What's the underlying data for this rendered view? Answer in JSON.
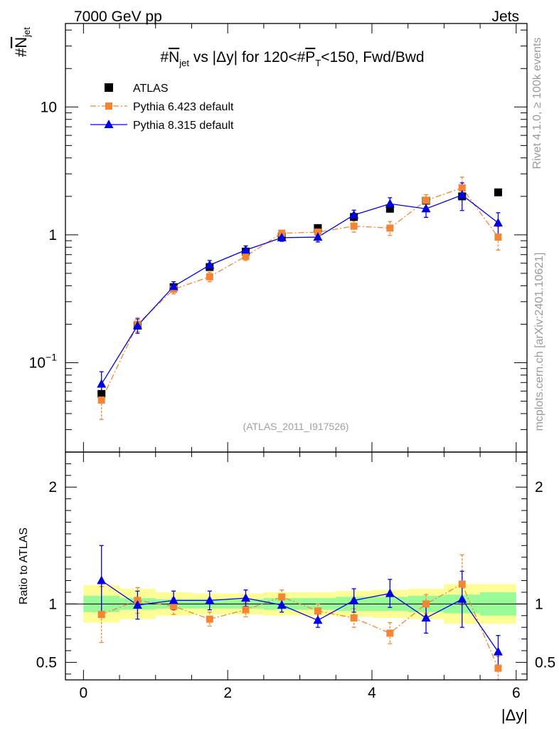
{
  "header": {
    "left": "7000 GeV pp",
    "right": "Jets"
  },
  "side_labels": {
    "rivet": "Rivet 4.1.0, ≥ 100k events",
    "mcplots": "mcplots.cern.ch [arXiv:2401.10621]"
  },
  "chart_data": {
    "type": "scatter",
    "title": "#N_jet vs |Δy| for 120<#P_T<150, Fwd/Bwd",
    "title_parts": {
      "pre": "#",
      "n": "N",
      "jet": "jet",
      "mid": " vs |Δy| for 120<#",
      "p": "P",
      "t": "T",
      "post": "<150, Fwd/Bwd"
    },
    "ylabel_main": {
      "hash": "#",
      "n": "N",
      "jet": "jet"
    },
    "ylabel_ratio": "Ratio to ATLAS",
    "xlabel": "|Δy|",
    "watermark": "(ATLAS_2011_I917526)",
    "xlim": [
      -0.25,
      6.15
    ],
    "ylim_main": [
      0.02,
      45
    ],
    "ylim_ratio": [
      0.35,
      2.3
    ],
    "x_ticks": [
      0,
      2,
      4,
      6
    ],
    "x_tick_labels": [
      "0",
      "2",
      "4",
      "6"
    ],
    "main_y_ticks": [
      {
        "value": 0.1,
        "base": "10",
        "exp": "−1"
      },
      {
        "value": 1,
        "base": "1",
        "exp": ""
      },
      {
        "value": 10,
        "base": "10",
        "exp": ""
      }
    ],
    "ratio_y_ticks": [
      {
        "value": 0.5,
        "label": "0.5"
      },
      {
        "value": 1,
        "label": "1"
      },
      {
        "value": 2,
        "label": "2"
      }
    ],
    "bin_edges": [
      0,
      0.5,
      1,
      1.5,
      2,
      2.5,
      3,
      3.5,
      4,
      4.5,
      5,
      5.5,
      6
    ],
    "x": [
      0.25,
      0.75,
      1.25,
      1.75,
      2.25,
      2.75,
      3.25,
      3.75,
      4.25,
      4.75,
      5.25,
      5.75
    ],
    "data": {
      "name": "ATLAS",
      "values": [
        0.057,
        0.195,
        0.39,
        0.56,
        0.74,
        0.97,
        1.13,
        1.38,
        1.6,
        1.85,
        2.0,
        2.15
      ],
      "band_stat": [
        0.07,
        0.05,
        0.04,
        0.04,
        0.04,
        0.05,
        0.05,
        0.06,
        0.06,
        0.07,
        0.08,
        0.1
      ],
      "band_total": [
        0.16,
        0.13,
        0.1,
        0.09,
        0.09,
        0.1,
        0.1,
        0.11,
        0.12,
        0.13,
        0.17,
        0.17
      ]
    },
    "series": [
      {
        "name": "Pythia 6.423 default",
        "color": "#f58433",
        "marker": "square",
        "values": [
          0.051,
          0.2,
          0.375,
          0.47,
          0.68,
          1.03,
          1.05,
          1.17,
          1.13,
          1.86,
          2.33,
          0.96
        ],
        "err_lo": [
          0.015,
          0.025,
          0.03,
          0.04,
          0.05,
          0.06,
          0.07,
          0.12,
          0.14,
          0.2,
          0.35,
          0.2
        ],
        "err_hi": [
          0.015,
          0.025,
          0.03,
          0.04,
          0.05,
          0.06,
          0.07,
          0.12,
          0.14,
          0.2,
          0.5,
          0.2
        ],
        "ratio": [
          0.91,
          1.03,
          0.98,
          0.87,
          0.95,
          1.06,
          0.94,
          0.88,
          0.75,
          1.0,
          1.17,
          0.45
        ],
        "ratio_err_lo": [
          0.24,
          0.11,
          0.07,
          0.06,
          0.06,
          0.06,
          0.06,
          0.08,
          0.09,
          0.08,
          0.18,
          0.1
        ],
        "ratio_err_hi": [
          0.24,
          0.11,
          0.07,
          0.06,
          0.06,
          0.06,
          0.06,
          0.08,
          0.09,
          0.08,
          0.25,
          0.1
        ]
      },
      {
        "name": "Pythia 8.315 default",
        "color": "#0000e6",
        "marker": "triangle",
        "values": [
          0.068,
          0.195,
          0.395,
          0.58,
          0.76,
          0.95,
          0.96,
          1.43,
          1.75,
          1.6,
          2.05,
          1.24
        ],
        "err_lo": [
          0.017,
          0.025,
          0.035,
          0.05,
          0.06,
          0.06,
          0.08,
          0.13,
          0.2,
          0.23,
          0.5,
          0.25
        ],
        "err_hi": [
          0.017,
          0.025,
          0.035,
          0.05,
          0.06,
          0.06,
          0.08,
          0.13,
          0.2,
          0.23,
          0.5,
          0.25
        ],
        "ratio": [
          1.2,
          0.99,
          1.03,
          1.03,
          1.05,
          0.99,
          0.86,
          1.03,
          1.09,
          0.88,
          1.04,
          0.59
        ],
        "ratio_err_lo": [
          0.3,
          0.12,
          0.08,
          0.08,
          0.07,
          0.06,
          0.06,
          0.1,
          0.12,
          0.13,
          0.24,
          0.14
        ],
        "ratio_err_hi": [
          0.3,
          0.12,
          0.08,
          0.08,
          0.07,
          0.06,
          0.06,
          0.1,
          0.12,
          0.13,
          0.24,
          0.14
        ]
      }
    ],
    "band_colors": {
      "total": "#fdfd96",
      "stat": "#98fb98"
    },
    "legend": {
      "position": "top-left"
    }
  }
}
